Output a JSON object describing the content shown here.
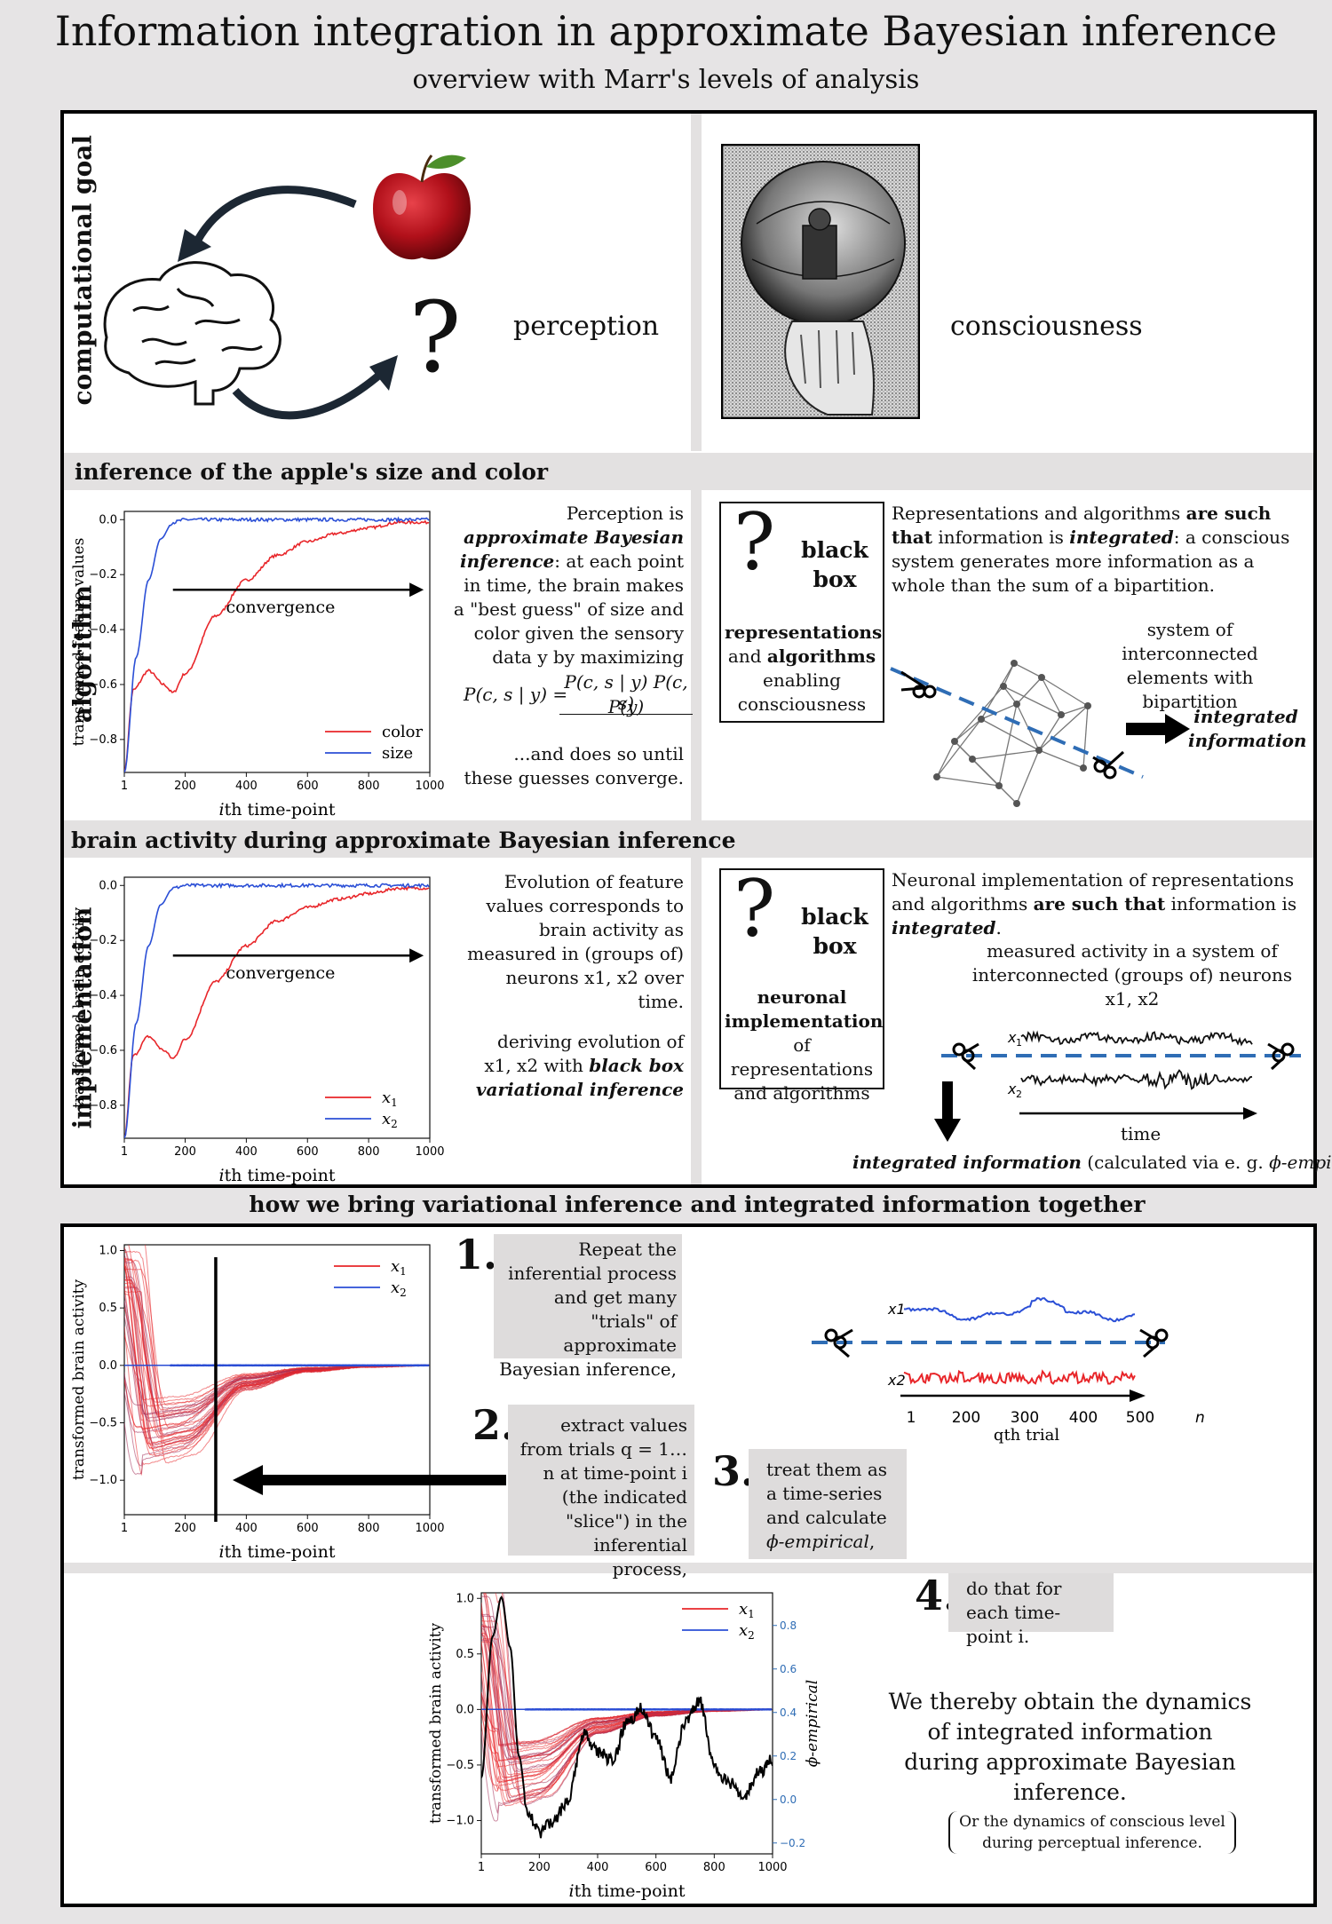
{
  "title": "Information integration in approximate  Bayesian inference",
  "subtitle": "overview with Marr's levels of analysis",
  "levels": {
    "computational": "computational goal",
    "algorithm": "algorithm",
    "implementation": "implementation"
  },
  "top": {
    "question_mark": "?",
    "perception": "perception",
    "consciousness": "consciousness"
  },
  "algorithm_section": {
    "band_title": "inference of the apple's size and color",
    "text_part1_a": "Perception is ",
    "text_part1_b": "approximate Bayesian inference",
    "text_part1_c": ": at each point in time, the brain makes a \"best guess\" of size and color given the sensory data y by maximizing",
    "formula_lhs": "P(c, s | y) =",
    "formula_num": "P(c, s | y) P(c, s)",
    "formula_den": "P(y)",
    "text_part2": "...and does so until these guesses converge.",
    "box_q": "?",
    "box_title": "black box",
    "box_text_a": "representations",
    "box_text_b": "and ",
    "box_text_c": "algorithms",
    "box_text_d": "enabling consciousness",
    "right_text_a": "Representations and algorithms ",
    "right_text_b": "are such that",
    "right_text_c": "information is ",
    "right_text_d": "integrated",
    "right_text_e": ": a conscious system generates more information as a whole than the sum of a bipartition.",
    "network_caption": "system of interconnected elements with bipartition",
    "integrated_label": "integrated information"
  },
  "implementation_section": {
    "band_title": "brain activity during approximate Bayesian inference",
    "text_part1": "Evolution of feature values corresponds to brain activity as measured in (groups of) neurons x1, x2 over time.",
    "text_part2_a": "deriving evolution of x1, x2 with ",
    "text_part2_b": "black box variational inference",
    "box_q": "?",
    "box_title": "black box",
    "box_text_a": "neuronal implementation",
    "box_text_b": "of  representations and algorithms",
    "right_text_a": "Neuronal implementation of representations and algorithms ",
    "right_text_b": "are such that",
    "right_text_c": " information is ",
    "right_text_d": "integrated",
    "right_text_e": ".",
    "measured_text": "measured activity in a system of interconnected (groups of) neurons x1, x2",
    "time_label": "time",
    "bottom_a": "integrated information",
    "bottom_b": " (calculated via e. g. ",
    "bottom_c": "ϕ-empirical",
    "bottom_d": ")"
  },
  "bottom_section": {
    "band_title": "how we bring variational inference and integrated information together",
    "step1_num": "1.",
    "step1_text": "Repeat the inferential process and get many \"trials\" of approximate Bayesian inference,",
    "step2_num": "2.",
    "step2_text": "extract values from trials q = 1…n at time-point i (the indicated \"slice\") in the inferential process,",
    "step3_num": "3.",
    "step3_text_a": "treat them as a time-series and calculate ",
    "step3_text_b": "ϕ-empirical",
    "step3_text_c": ",",
    "step4_num": "4.",
    "step4_text": "do that for each time-point i.",
    "conclusion": "We thereby obtain the dynamics of integrated information during approximate Bayesian inference.",
    "note": "Or the dynamics of conscious level during perceptual inference."
  },
  "trial_plot": {
    "x_ticks": [
      "1",
      "200",
      "300",
      "400",
      "500"
    ],
    "x_extra": "n",
    "x_label": "qth trial",
    "label_x1": "x1",
    "label_x2": "x2"
  },
  "colors": {
    "red": "#e8262a",
    "blue": "#2b4fd6",
    "band": "#e3e1e1"
  },
  "icons": [
    "apple-icon",
    "brain-icon",
    "hand-mirror-sphere-image",
    "scissors-icon",
    "network-diagram"
  ],
  "chart_data": [
    {
      "type": "line",
      "title": "",
      "xlabel": "ith time-point",
      "ylabel": "transformed feature values",
      "x_ticks": [
        "1",
        "200",
        "400",
        "600",
        "800",
        "1000"
      ],
      "y_ticks": [
        "0.0",
        "−0.2",
        "−0.4",
        "−0.6",
        "−0.8"
      ],
      "xlim": [
        1,
        1000
      ],
      "ylim": [
        -0.92,
        0.03
      ],
      "annotation": "convergence",
      "series": [
        {
          "name": "color",
          "color": "#e8262a",
          "x": [
            1,
            30,
            80,
            130,
            160,
            200,
            300,
            400,
            500,
            600,
            700,
            800,
            900,
            1000
          ],
          "values": [
            -0.92,
            -0.62,
            -0.55,
            -0.6,
            -0.63,
            -0.56,
            -0.35,
            -0.22,
            -0.13,
            -0.08,
            -0.05,
            -0.03,
            -0.01,
            -0.01
          ]
        },
        {
          "name": "size",
          "color": "#2b4fd6",
          "x": [
            1,
            40,
            80,
            120,
            160,
            200,
            400,
            600,
            800,
            1000
          ],
          "values": [
            -0.92,
            -0.5,
            -0.22,
            -0.07,
            -0.01,
            0.0,
            0.0,
            0.0,
            0.0,
            0.0
          ]
        }
      ]
    },
    {
      "type": "line",
      "title": "",
      "xlabel": "ith time-point",
      "ylabel": "transformed brain activity",
      "x_ticks": [
        "1",
        "200",
        "400",
        "600",
        "800",
        "1000"
      ],
      "y_ticks": [
        "0.0",
        "−0.2",
        "−0.4",
        "−0.6",
        "−0.8"
      ],
      "xlim": [
        1,
        1000
      ],
      "ylim": [
        -0.92,
        0.03
      ],
      "annotation": "convergence",
      "series": [
        {
          "name": "x1",
          "color": "#e8262a",
          "x": [
            1,
            30,
            80,
            130,
            160,
            200,
            300,
            400,
            500,
            600,
            700,
            800,
            900,
            1000
          ],
          "values": [
            -0.92,
            -0.62,
            -0.55,
            -0.6,
            -0.63,
            -0.56,
            -0.35,
            -0.22,
            -0.13,
            -0.08,
            -0.05,
            -0.03,
            -0.01,
            -0.01
          ]
        },
        {
          "name": "x2",
          "color": "#2b4fd6",
          "x": [
            1,
            40,
            80,
            120,
            160,
            200,
            400,
            600,
            800,
            1000
          ],
          "values": [
            -0.92,
            -0.5,
            -0.22,
            -0.07,
            -0.01,
            0.0,
            0.0,
            0.0,
            0.0,
            0.0
          ]
        }
      ]
    },
    {
      "type": "line",
      "title": "",
      "xlabel": "ith time-point",
      "ylabel": "transformed brain activity",
      "x_ticks": [
        "1",
        "200",
        "400",
        "600",
        "800",
        "1000"
      ],
      "y_ticks": [
        "1.0",
        "0.5",
        "0.0",
        "−0.5",
        "−1.0"
      ],
      "xlim": [
        1,
        1000
      ],
      "ylim": [
        -1.3,
        1.05
      ],
      "slice_at": 300,
      "series": [
        {
          "name": "x1",
          "color": "#e8262a",
          "description": "many trials",
          "x": [
            1,
            100,
            200,
            400,
            600,
            800,
            1000
          ],
          "values": [
            0.9,
            -0.6,
            -0.55,
            -0.15,
            -0.04,
            -0.01,
            0.0
          ]
        },
        {
          "name": "x2",
          "color": "#2b4fd6",
          "x": [
            1,
            200,
            400,
            600,
            800,
            1000
          ],
          "values": [
            0.0,
            0.0,
            0.0,
            0.0,
            0.0,
            0.0
          ]
        }
      ]
    },
    {
      "type": "line",
      "title": "",
      "xlabel": "ith time-point",
      "ylabel": "transformed brain activity",
      "y2label": "ϕ-empirical",
      "x_ticks": [
        "1",
        "200",
        "400",
        "600",
        "800",
        "1000"
      ],
      "y_ticks": [
        "1.0",
        "0.5",
        "0.0",
        "−0.5",
        "−1.0"
      ],
      "y2_ticks": [
        "0.8",
        "0.6",
        "0.4",
        "0.2",
        "0.0",
        "−0.2"
      ],
      "xlim": [
        1,
        1000
      ],
      "ylim": [
        -1.3,
        1.05
      ],
      "y2lim": [
        -0.25,
        0.95
      ],
      "series": [
        {
          "name": "x1",
          "color": "#e8262a",
          "x": [
            1,
            100,
            200,
            400,
            600,
            800,
            1000
          ],
          "values": [
            0.9,
            -0.6,
            -0.55,
            -0.15,
            -0.04,
            -0.01,
            0.0
          ]
        },
        {
          "name": "x2",
          "color": "#2b4fd6",
          "x": [
            1,
            200,
            400,
            600,
            800,
            1000
          ],
          "values": [
            0.0,
            0.0,
            0.0,
            0.0,
            0.0,
            0.0
          ]
        },
        {
          "name": "",
          "color": "#000000",
          "axis": "y2",
          "x": [
            1,
            40,
            70,
            100,
            130,
            160,
            200,
            250,
            300,
            350,
            400,
            450,
            500,
            550,
            600,
            650,
            700,
            750,
            800,
            850,
            900,
            950,
            1000
          ],
          "values": [
            0.1,
            0.75,
            0.93,
            0.7,
            0.2,
            -0.05,
            -0.15,
            -0.1,
            0.0,
            0.3,
            0.22,
            0.18,
            0.35,
            0.42,
            0.28,
            0.1,
            0.35,
            0.45,
            0.15,
            0.08,
            0.0,
            0.12,
            0.18
          ]
        }
      ]
    }
  ]
}
